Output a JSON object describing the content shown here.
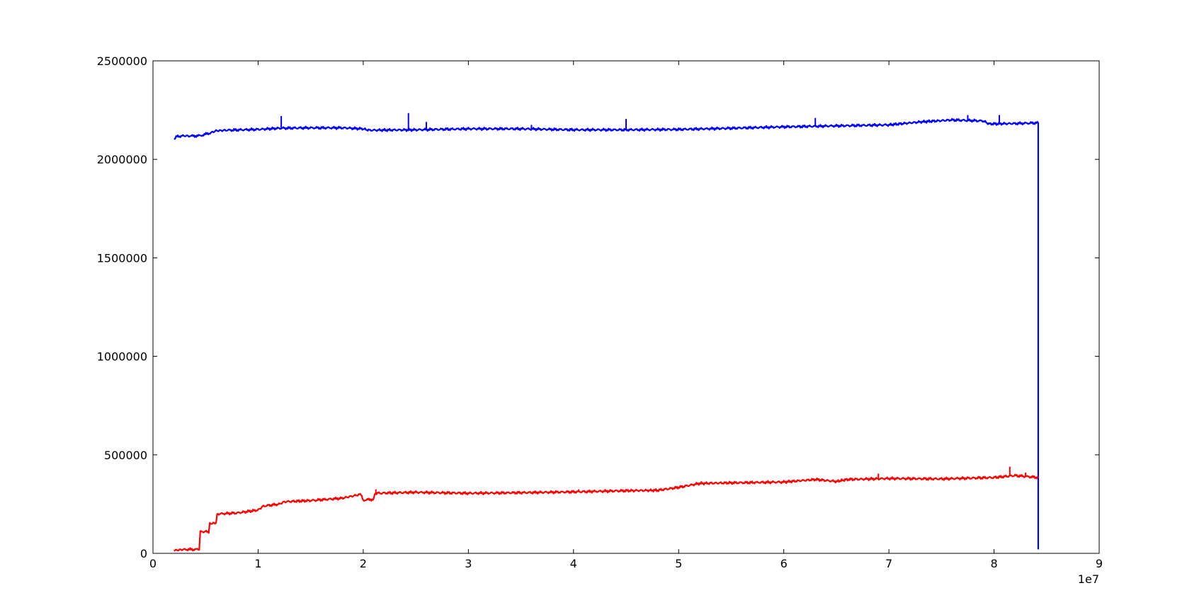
{
  "chart_data": {
    "type": "line",
    "title": "",
    "xlabel": "",
    "ylabel": "",
    "x_offset_label": "1e7",
    "xlim": [
      0,
      9
    ],
    "ylim": [
      0,
      2500000
    ],
    "x_ticks": [
      0,
      1,
      2,
      3,
      4,
      5,
      6,
      7,
      8,
      9
    ],
    "x_tick_labels": [
      "0",
      "1",
      "2",
      "3",
      "4",
      "5",
      "6",
      "7",
      "8",
      "9"
    ],
    "y_ticks": [
      0,
      500000,
      1000000,
      1500000,
      2000000,
      2500000
    ],
    "y_tick_labels": [
      "0",
      "500000",
      "1000000",
      "1500000",
      "2000000",
      "2500000"
    ],
    "grid": false,
    "legend": "none",
    "series": [
      {
        "color": "#0000ff",
        "x": [
          0.2,
          0.22,
          0.3,
          0.35,
          0.45,
          0.55,
          0.6,
          0.7,
          0.85,
          1.0,
          1.2,
          1.5,
          1.8,
          2.0,
          2.05,
          2.5,
          3.0,
          3.5,
          4.0,
          4.5,
          5.0,
          5.5,
          6.0,
          6.5,
          7.0,
          7.3,
          7.6,
          7.9,
          7.95,
          8.2,
          8.42,
          8.42
        ],
        "y": [
          2100000,
          2115000,
          2120000,
          2118000,
          2120000,
          2135000,
          2145000,
          2148000,
          2150000,
          2152000,
          2158000,
          2160000,
          2160000,
          2155000,
          2148000,
          2150000,
          2155000,
          2155000,
          2150000,
          2150000,
          2152000,
          2158000,
          2165000,
          2170000,
          2175000,
          2190000,
          2200000,
          2195000,
          2180000,
          2182000,
          2185000,
          20000
        ],
        "spikes": [
          {
            "x": 1.22,
            "y": 2220000
          },
          {
            "x": 2.43,
            "y": 2235000
          },
          {
            "x": 2.6,
            "y": 2190000
          },
          {
            "x": 3.6,
            "y": 2175000
          },
          {
            "x": 4.5,
            "y": 2205000
          },
          {
            "x": 6.3,
            "y": 2210000
          },
          {
            "x": 7.75,
            "y": 2225000
          },
          {
            "x": 8.05,
            "y": 2225000
          }
        ]
      },
      {
        "color": "#ff0000",
        "x": [
          0.2,
          0.3,
          0.44,
          0.45,
          0.53,
          0.54,
          0.6,
          0.61,
          0.8,
          1.0,
          1.05,
          1.2,
          1.25,
          1.5,
          1.8,
          1.98,
          2.0,
          2.1,
          2.11,
          2.5,
          3.0,
          3.5,
          4.0,
          4.5,
          4.8,
          5.0,
          5.2,
          5.5,
          6.0,
          6.3,
          6.5,
          6.6,
          7.0,
          7.5,
          8.0,
          8.2,
          8.42
        ],
        "y": [
          15000,
          20000,
          20000,
          110000,
          110000,
          150000,
          155000,
          200000,
          205000,
          220000,
          240000,
          250000,
          262000,
          268000,
          280000,
          300000,
          270000,
          275000,
          305000,
          310000,
          305000,
          308000,
          312000,
          318000,
          320000,
          335000,
          355000,
          358000,
          362000,
          375000,
          365000,
          375000,
          380000,
          378000,
          385000,
          395000,
          385000
        ],
        "spikes": [
          {
            "x": 2.12,
            "y": 325000
          },
          {
            "x": 4.05,
            "y": 325000
          },
          {
            "x": 6.9,
            "y": 405000
          },
          {
            "x": 8.15,
            "y": 440000
          },
          {
            "x": 8.3,
            "y": 410000
          }
        ]
      }
    ]
  }
}
